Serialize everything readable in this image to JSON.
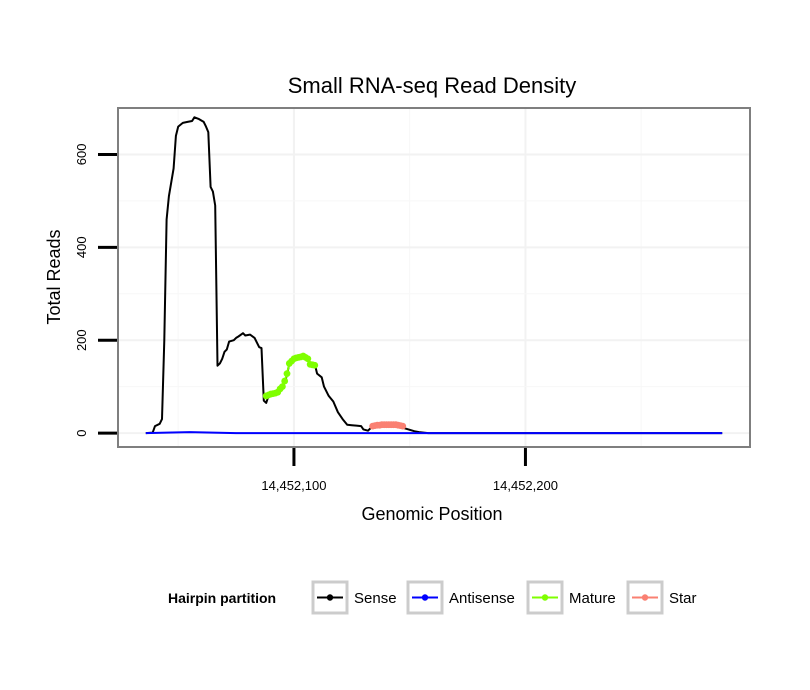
{
  "chart_data": {
    "type": "line",
    "title": "Small RNA-seq Read Density",
    "xlabel": "Genomic Position",
    "ylabel": "Total Reads",
    "xlim": [
      14452024,
      14452297
    ],
    "ylim": [
      -30,
      700
    ],
    "x_ticks": [
      14452100,
      14452200
    ],
    "x_tick_labels": [
      "14,452,100",
      "14,452,200"
    ],
    "y_ticks": [
      0,
      200,
      400,
      600
    ],
    "y_tick_labels": [
      "0",
      "200",
      "400",
      "600"
    ],
    "legend": {
      "title": "Hairpin partition",
      "position": "bottom",
      "entries": [
        {
          "name": "Sense",
          "color": "#000000"
        },
        {
          "name": "Antisense",
          "color": "#0000ff"
        },
        {
          "name": "Mature",
          "color": "#7fff00"
        },
        {
          "name": "Star",
          "color": "#fa8072"
        }
      ]
    },
    "series": [
      {
        "name": "Sense",
        "color": "#000000",
        "markers": false,
        "points": [
          [
            14452036,
            0
          ],
          [
            14452039,
            1
          ],
          [
            14452040,
            15
          ],
          [
            14452042,
            20
          ],
          [
            14452043,
            30
          ],
          [
            14452044,
            200
          ],
          [
            14452045,
            460
          ],
          [
            14452046,
            510
          ],
          [
            14452048,
            570
          ],
          [
            14452049,
            640
          ],
          [
            14452050,
            660
          ],
          [
            14452052,
            668
          ],
          [
            14452054,
            670
          ],
          [
            14452056,
            672
          ],
          [
            14452057,
            680
          ],
          [
            14452058,
            678
          ],
          [
            14452059,
            676
          ],
          [
            14452061,
            670
          ],
          [
            14452062,
            660
          ],
          [
            14452063,
            648
          ],
          [
            14452064,
            530
          ],
          [
            14452065,
            520
          ],
          [
            14452066,
            490
          ],
          [
            14452067,
            145
          ],
          [
            14452068,
            150
          ],
          [
            14452069,
            160
          ],
          [
            14452070,
            175
          ],
          [
            14452071,
            180
          ],
          [
            14452072,
            197
          ],
          [
            14452074,
            200
          ],
          [
            14452075,
            205
          ],
          [
            14452076,
            208
          ],
          [
            14452078,
            215
          ],
          [
            14452079,
            210
          ],
          [
            14452081,
            212
          ],
          [
            14452083,
            205
          ],
          [
            14452085,
            185
          ],
          [
            14452086,
            183
          ],
          [
            14452087,
            70
          ],
          [
            14452088,
            65
          ],
          [
            14452089,
            80
          ],
          [
            14452091,
            85
          ],
          [
            14452093,
            87
          ],
          [
            14452095,
            100
          ],
          [
            14452096,
            110
          ],
          [
            14452097,
            125
          ],
          [
            14452098,
            150
          ],
          [
            14452099,
            155
          ],
          [
            14452100,
            160
          ],
          [
            14452102,
            163
          ],
          [
            14452104,
            166
          ],
          [
            14452106,
            163
          ],
          [
            14452107,
            148
          ],
          [
            14452109,
            148
          ],
          [
            14452110,
            128
          ],
          [
            14452112,
            120
          ],
          [
            14452113,
            100
          ],
          [
            14452115,
            80
          ],
          [
            14452117,
            68
          ],
          [
            14452119,
            45
          ],
          [
            14452121,
            30
          ],
          [
            14452123,
            18
          ],
          [
            14452125,
            17
          ],
          [
            14452127,
            16
          ],
          [
            14452129,
            15
          ],
          [
            14452130,
            8
          ],
          [
            14452132,
            5
          ],
          [
            14452134,
            15
          ],
          [
            14452137,
            17
          ],
          [
            14452140,
            18
          ],
          [
            14452144,
            18
          ],
          [
            14452146,
            14
          ],
          [
            14452148,
            10
          ],
          [
            14452150,
            7
          ],
          [
            14452152,
            4
          ],
          [
            14452154,
            2
          ],
          [
            14452156,
            1
          ],
          [
            14452158,
            0
          ],
          [
            14452200,
            0
          ],
          [
            14452250,
            0
          ],
          [
            14452285,
            0
          ]
        ]
      },
      {
        "name": "Antisense",
        "color": "#0000ff",
        "markers": false,
        "points": [
          [
            14452036,
            0
          ],
          [
            14452045,
            1
          ],
          [
            14452055,
            2
          ],
          [
            14452065,
            1
          ],
          [
            14452075,
            0
          ],
          [
            14452100,
            0
          ],
          [
            14452150,
            0
          ],
          [
            14452200,
            0
          ],
          [
            14452250,
            0
          ],
          [
            14452285,
            0
          ]
        ]
      },
      {
        "name": "Mature",
        "color": "#7fff00",
        "markers": true,
        "points": [
          [
            14452088,
            80
          ],
          [
            14452089,
            82
          ],
          [
            14452090,
            84
          ],
          [
            14452091,
            85
          ],
          [
            14452092,
            86
          ],
          [
            14452093,
            88
          ],
          [
            14452094,
            95
          ],
          [
            14452095,
            100
          ],
          [
            14452096,
            112
          ],
          [
            14452097,
            128
          ],
          [
            14452098,
            150
          ],
          [
            14452099,
            155
          ],
          [
            14452100,
            160
          ],
          [
            14452101,
            162
          ],
          [
            14452102,
            163
          ],
          [
            14452103,
            164
          ],
          [
            14452104,
            166
          ],
          [
            14452105,
            163
          ],
          [
            14452106,
            160
          ],
          [
            14452107,
            148
          ],
          [
            14452108,
            147
          ],
          [
            14452109,
            146
          ]
        ]
      },
      {
        "name": "Star",
        "color": "#fa8072",
        "markers": true,
        "points": [
          [
            14452134,
            15
          ],
          [
            14452135,
            16
          ],
          [
            14452136,
            17
          ],
          [
            14452137,
            17
          ],
          [
            14452138,
            18
          ],
          [
            14452139,
            18
          ],
          [
            14452140,
            18
          ],
          [
            14452141,
            18
          ],
          [
            14452142,
            18
          ],
          [
            14452143,
            18
          ],
          [
            14452144,
            18
          ],
          [
            14452145,
            17
          ],
          [
            14452146,
            16
          ],
          [
            14452147,
            15
          ]
        ]
      }
    ]
  }
}
